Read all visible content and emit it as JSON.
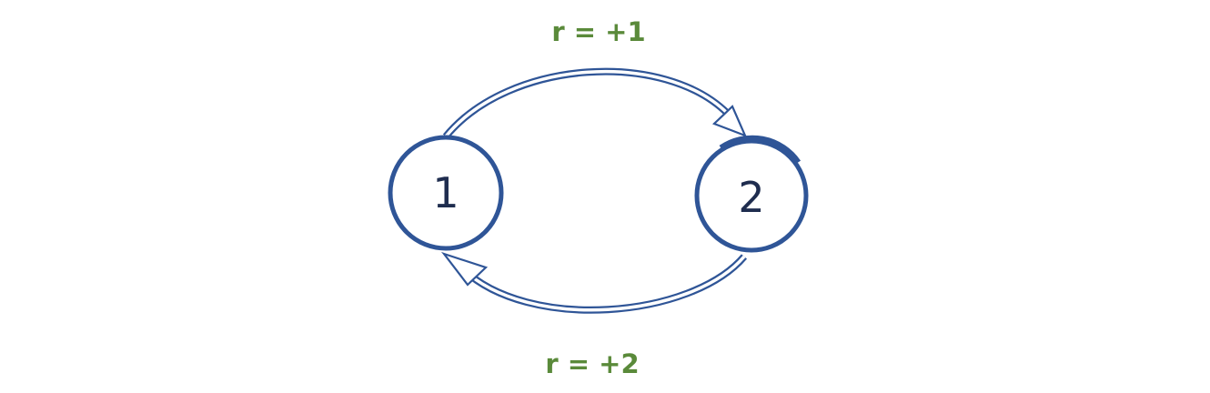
{
  "nodes": [
    {
      "id": "1",
      "label": "1"
    },
    {
      "id": "2",
      "label": "2"
    }
  ],
  "edges": [
    {
      "from": "1",
      "to": "2",
      "label": "r = +1"
    },
    {
      "from": "2",
      "to": "1",
      "label": "r = +2"
    }
  ],
  "colors": {
    "node_stroke": "#2f5597",
    "node_text": "#1f2d4f",
    "arrow": "#2f5597",
    "edge_label": "#5a8a3a"
  }
}
